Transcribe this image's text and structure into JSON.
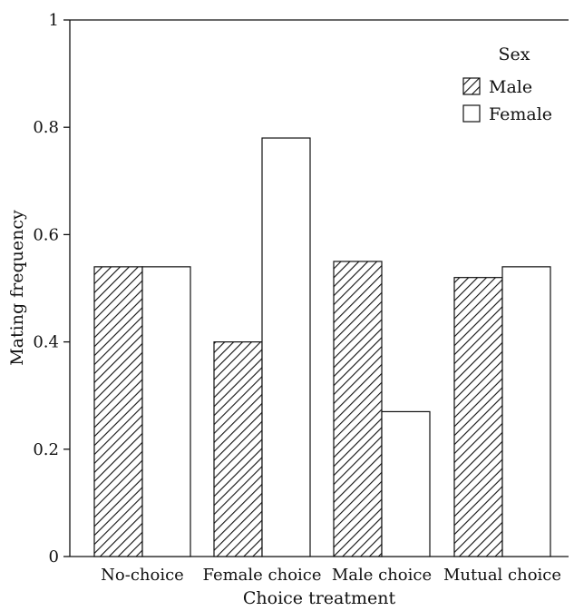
{
  "chart_data": {
    "type": "bar",
    "categories": [
      "No-choice",
      "Female choice",
      "Male choice",
      "Mutual choice"
    ],
    "series": [
      {
        "name": "Male",
        "values": [
          0.54,
          0.4,
          0.55,
          0.52
        ],
        "pattern": "hatched"
      },
      {
        "name": "Female",
        "values": [
          0.54,
          0.78,
          0.27,
          0.54
        ],
        "pattern": "open"
      }
    ],
    "title": "",
    "xlabel": "Choice treatment",
    "ylabel": "Mating frequency",
    "ylim": [
      0,
      1
    ],
    "yticks": [
      "0",
      "0.2",
      "0.4",
      "0.6",
      "0.8",
      "1"
    ],
    "legend": {
      "title": "Sex",
      "placement": "top-right"
    },
    "grid": false
  }
}
